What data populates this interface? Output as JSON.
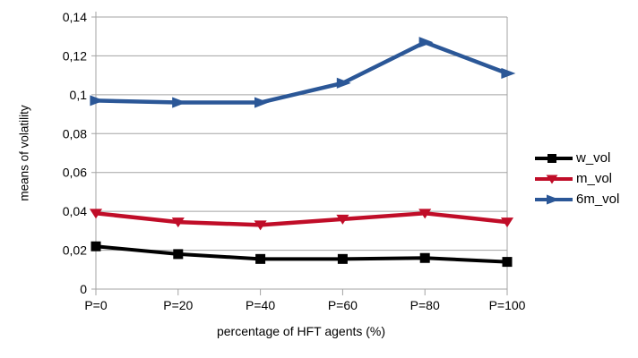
{
  "chart_data": {
    "type": "line",
    "title": "",
    "xlabel": "percentage of HFT agents (%)",
    "ylabel": "means of volatility",
    "categories": [
      "P=0",
      "P=20",
      "P=40",
      "P=60",
      "P=80",
      "P=100"
    ],
    "y_axis": {
      "min": 0,
      "max": 0.14,
      "tick_values": [
        0,
        0.02,
        0.04,
        0.06,
        0.08,
        0.1,
        0.12,
        0.14
      ],
      "tick_labels": [
        "0",
        "0,02",
        "0,04",
        "0,06",
        "0,08",
        "0,1",
        "0,12",
        "0,14"
      ]
    },
    "grid": "horizontal",
    "legend_position": "right",
    "series": [
      {
        "name": "w_vol",
        "color": "#000000",
        "marker": "square",
        "line_width": 4,
        "values": [
          0.022,
          0.018,
          0.0155,
          0.0155,
          0.016,
          0.014
        ]
      },
      {
        "name": "m_vol",
        "color": "#c00d28",
        "marker": "triangle-down",
        "line_width": 4.5,
        "values": [
          0.039,
          0.0345,
          0.033,
          0.036,
          0.039,
          0.0345
        ]
      },
      {
        "name": "6m_vol",
        "color": "#2b5797",
        "marker": "arrow-right",
        "line_width": 4.5,
        "values": [
          0.097,
          0.096,
          0.096,
          0.106,
          0.127,
          0.111
        ]
      }
    ]
  },
  "colors": {
    "background": "#ffffff",
    "grid": "#a3a3a3",
    "axis": "#a3a3a3",
    "text": "#000000"
  }
}
